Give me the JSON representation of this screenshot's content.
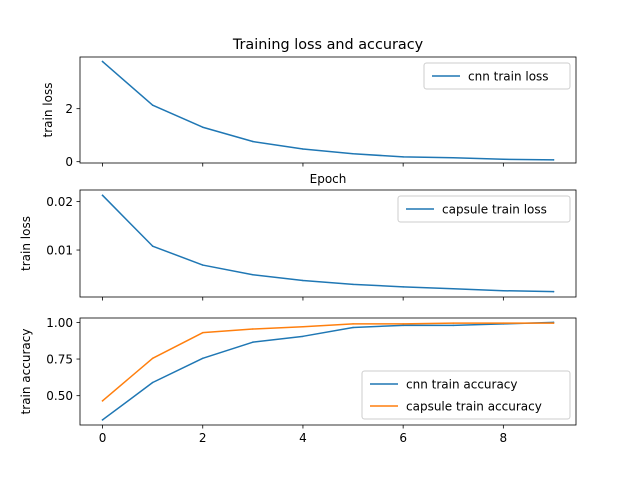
{
  "chart_data": [
    {
      "type": "line",
      "title": "Training loss and accuracy",
      "xlabel": "Epoch",
      "ylabel": "train loss",
      "xlim": [
        -0.45,
        9.45
      ],
      "ylim": [
        -0.05,
        3.95
      ],
      "xticks": [
        0,
        2,
        4,
        6,
        8
      ],
      "show_xtick_labels": false,
      "yticks": [
        0,
        2
      ],
      "ytick_labels": [
        "0",
        "2"
      ],
      "legend": "top-right",
      "x": [
        0,
        1,
        2,
        3,
        4,
        5,
        6,
        7,
        8,
        9
      ],
      "series": [
        {
          "name": "cnn train loss",
          "color": "#1f77b4",
          "values": [
            3.78,
            2.13,
            1.3,
            0.76,
            0.48,
            0.3,
            0.18,
            0.15,
            0.09,
            0.07
          ]
        }
      ]
    },
    {
      "type": "line",
      "title": "",
      "xlabel": "",
      "ylabel": "train loss",
      "xlim": [
        -0.45,
        9.45
      ],
      "ylim": [
        0.0003,
        0.0224
      ],
      "xticks": [
        0,
        2,
        4,
        6,
        8
      ],
      "show_xtick_labels": false,
      "yticks": [
        0.01,
        0.02
      ],
      "ytick_labels": [
        "0.01",
        "0.02"
      ],
      "legend": "top-right",
      "x": [
        0,
        1,
        2,
        3,
        4,
        5,
        6,
        7,
        8,
        9
      ],
      "series": [
        {
          "name": "capsule train loss",
          "color": "#1f77b4",
          "values": [
            0.0213,
            0.0108,
            0.0069,
            0.0049,
            0.0037,
            0.0029,
            0.0024,
            0.002,
            0.0016,
            0.0014
          ]
        }
      ]
    },
    {
      "type": "line",
      "title": "",
      "xlabel": "",
      "ylabel": "train accuracy",
      "xlim": [
        -0.45,
        9.45
      ],
      "ylim": [
        0.3,
        1.03
      ],
      "xticks": [
        0,
        2,
        4,
        6,
        8
      ],
      "show_xtick_labels": true,
      "yticks": [
        0.5,
        0.75,
        1.0
      ],
      "ytick_labels": [
        "0.50",
        "0.75",
        "1.00"
      ],
      "legend": "bottom-right",
      "x": [
        0,
        1,
        2,
        3,
        4,
        5,
        6,
        7,
        8,
        9
      ],
      "series": [
        {
          "name": "cnn train accuracy",
          "color": "#1f77b4",
          "values": [
            0.335,
            0.59,
            0.755,
            0.865,
            0.905,
            0.965,
            0.98,
            0.98,
            0.99,
            1.0
          ]
        },
        {
          "name": "capsule train accuracy",
          "color": "#ff7f0e",
          "values": [
            0.465,
            0.755,
            0.93,
            0.955,
            0.97,
            0.99,
            0.99,
            0.995,
            0.995,
            0.995
          ]
        }
      ]
    }
  ]
}
